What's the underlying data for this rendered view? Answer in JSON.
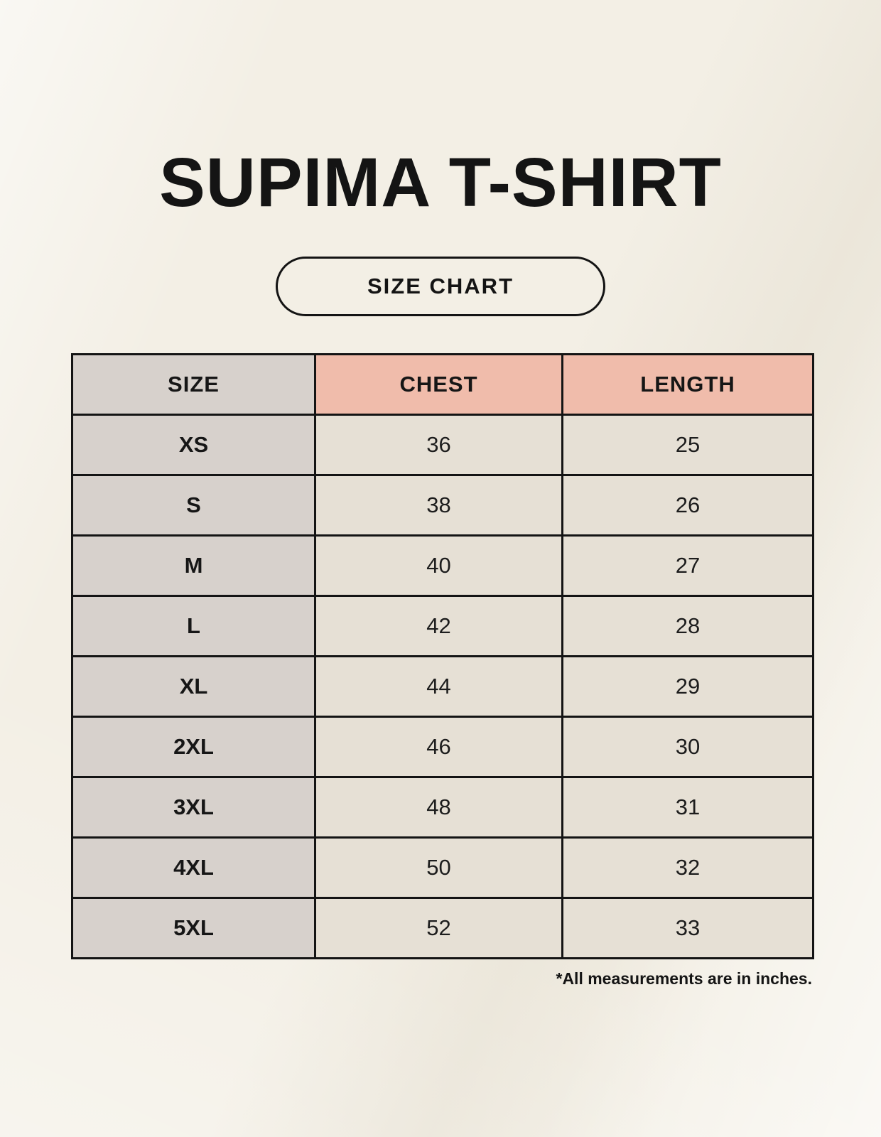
{
  "chart_data": {
    "type": "table",
    "title": "SUPIMA T-SHIRT",
    "subtitle": "SIZE CHART",
    "columns": [
      "SIZE",
      "CHEST",
      "LENGTH"
    ],
    "rows": [
      [
        "XS",
        "36",
        "25"
      ],
      [
        "S",
        "38",
        "26"
      ],
      [
        "M",
        "40",
        "27"
      ],
      [
        "L",
        "42",
        "28"
      ],
      [
        "XL",
        "44",
        "29"
      ],
      [
        "2XL",
        "46",
        "30"
      ],
      [
        "3XL",
        "48",
        "31"
      ],
      [
        "4XL",
        "50",
        "32"
      ],
      [
        "5XL",
        "52",
        "33"
      ]
    ],
    "footnote": "*All measurements are in inches.",
    "units": "inches"
  },
  "colors": {
    "page_background": "#f3efe5",
    "header_accent": "#f0bcab",
    "size_column_background": "#d7d1cc",
    "value_cell_background": "#e6e0d5",
    "table_border": "#141414",
    "text": "#141414"
  }
}
